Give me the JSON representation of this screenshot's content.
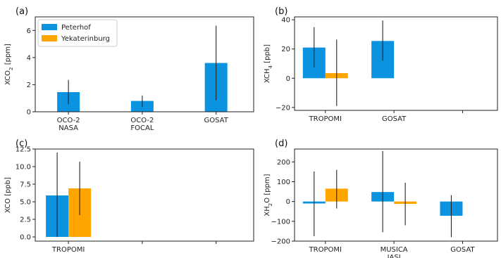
{
  "colors": {
    "peterhof": "#0c93e0",
    "yekaterinburg": "#ffa500",
    "errorbar": "#222222"
  },
  "legend": {
    "placement": "top-left",
    "entries": [
      {
        "name": "Peterhof",
        "color": "#0c93e0"
      },
      {
        "name": "Yekaterinburg",
        "color": "#ffa500"
      }
    ]
  },
  "chart_data": [
    {
      "panel": "(a)",
      "type": "bar",
      "ylabel_main": "XCO",
      "ylabel_sub": "2",
      "ylabel_unit": " [ppm]",
      "ylim": [
        0,
        7
      ],
      "yticks": [
        0,
        2,
        4,
        6
      ],
      "ytick_labels": [
        "0",
        "2",
        "4",
        "6"
      ],
      "categories": [
        "OCO-2\nNASA",
        "OCO-2\nFOCAL",
        "GOSAT"
      ],
      "series": [
        {
          "name": "Peterhof",
          "values": [
            1.45,
            0.8,
            3.6
          ],
          "err_low": [
            0.55,
            0.35,
            0.85
          ],
          "err_high": [
            2.35,
            1.2,
            6.35
          ]
        },
        {
          "name": "Yekaterinburg",
          "values": [
            null,
            null,
            null
          ],
          "err_low": [
            null,
            null,
            null
          ],
          "err_high": [
            null,
            null,
            null
          ]
        }
      ]
    },
    {
      "panel": "(b)",
      "type": "bar",
      "ylabel_main": "XCH",
      "ylabel_sub": "4",
      "ylabel_unit": " [ppb]",
      "ylim": [
        -22,
        42
      ],
      "yticks": [
        -20,
        0,
        20,
        40
      ],
      "ytick_labels": [
        "−20",
        "0",
        "20",
        "40"
      ],
      "categories": [
        "TROPOMI",
        "GOSAT",
        ""
      ],
      "series": [
        {
          "name": "Peterhof",
          "values": [
            21,
            25.5,
            null
          ],
          "err_low": [
            7.5,
            12,
            null
          ],
          "err_high": [
            35,
            39.5,
            null
          ]
        },
        {
          "name": "Yekaterinburg",
          "values": [
            3.5,
            null,
            null
          ],
          "err_low": [
            -19,
            null,
            null
          ],
          "err_high": [
            26.5,
            null,
            null
          ]
        }
      ]
    },
    {
      "panel": "(c)",
      "type": "bar",
      "ylabel_main": "XCO",
      "ylabel_sub": "",
      "ylabel_unit": " [ppb]",
      "ylim": [
        -0.6,
        12.5
      ],
      "yticks": [
        0,
        2.5,
        5,
        7.5,
        10,
        12.5
      ],
      "ytick_labels": [
        "0.0",
        "2.5",
        "5.0",
        "7.5",
        "10.0",
        "12.5"
      ],
      "categories": [
        "TROPOMI",
        "",
        ""
      ],
      "series": [
        {
          "name": "Peterhof",
          "values": [
            5.9,
            null,
            null
          ],
          "err_low": [
            0,
            null,
            null
          ],
          "err_high": [
            12,
            null,
            null
          ]
        },
        {
          "name": "Yekaterinburg",
          "values": [
            6.9,
            null,
            null
          ],
          "err_low": [
            3.1,
            null,
            null
          ],
          "err_high": [
            10.7,
            null,
            null
          ]
        }
      ]
    },
    {
      "panel": "(d)",
      "type": "bar",
      "ylabel_main": "XH",
      "ylabel_sub": "2",
      "ylabel_unit": "O [ppm]",
      "ylim": [
        -200,
        265
      ],
      "yticks": [
        -200,
        -100,
        0,
        100,
        200
      ],
      "ytick_labels": [
        "−200",
        "−100",
        "0",
        "100",
        "200"
      ],
      "categories": [
        "TROPOMI",
        "MUSICA\nIASI",
        "GOSAT"
      ],
      "series": [
        {
          "name": "Peterhof",
          "values": [
            -10,
            48,
            -72
          ],
          "err_low": [
            -175,
            -155,
            -180
          ],
          "err_high": [
            152,
            255,
            32
          ]
        },
        {
          "name": "Yekaterinburg",
          "values": [
            65,
            -12,
            null
          ],
          "err_low": [
            -35,
            -120,
            null
          ],
          "err_high": [
            160,
            95,
            null
          ]
        }
      ]
    }
  ]
}
